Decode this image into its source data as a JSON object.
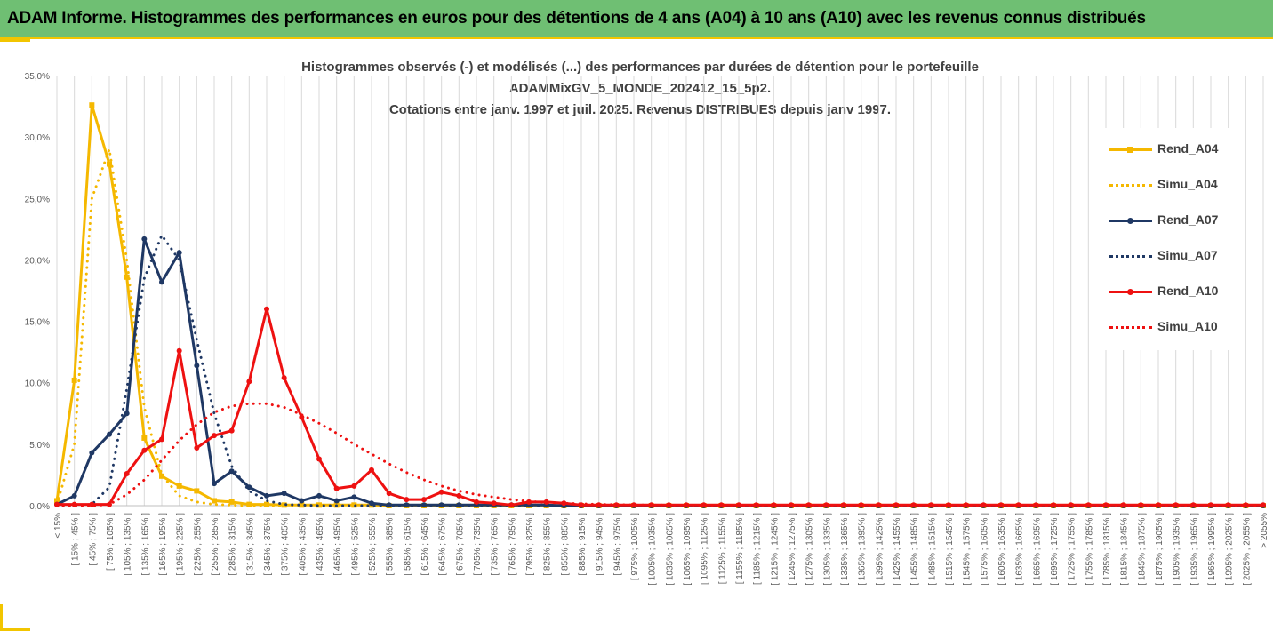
{
  "banner": {
    "title": "ADAM Informe. Histogrammes des performances en euros pour des détentions de 4 ans (A04) à 10 ans (A10) avec les revenus connus distribués"
  },
  "colors": {
    "banner_bg": "#6fbf73",
    "accent": "#f2c500",
    "a04": "#f5b800",
    "a07": "#1f3864",
    "a10": "#ee1111"
  },
  "chart_data": {
    "type": "line",
    "title": [
      "Histogrammes observés (-) et modélisés (...) des performances par durées de détention pour le portefeuille",
      "ADAMMixGV_5_MONDE_202412_15_5p2.",
      "Cotations entre janv. 1997 et juil. 2025. Revenus DISTRIBUES depuis janv 1997."
    ],
    "xlabel": "",
    "ylabel": "",
    "ylim": [
      0,
      35
    ],
    "y_ticks": [
      "0,0%",
      "5,0%",
      "10,0%",
      "15,0%",
      "20,0%",
      "25,0%",
      "30,0%",
      "35,0%"
    ],
    "grid": "vertical",
    "legend_position": "right",
    "categories": [
      "< 15%",
      "[ 15% ; 45% ]",
      "[ 45% ; 75% ]",
      "[ 75% ; 105% ]",
      "[ 105% ; 135% ]",
      "[ 135% ; 165% ]",
      "[ 165% ; 195% ]",
      "[ 195% ; 225% ]",
      "[ 225% ; 255% ]",
      "[ 255% ; 285% ]",
      "[ 285% ; 315% ]",
      "[ 315% ; 345% ]",
      "[ 345% ; 375% ]",
      "[ 375% ; 405% ]",
      "[ 405% ; 435% ]",
      "[ 435% ; 465% ]",
      "[ 465% ; 495% ]",
      "[ 495% ; 525% ]",
      "[ 525% ; 555% ]",
      "[ 555% ; 585% ]",
      "[ 585% ; 615% ]",
      "[ 615% ; 645% ]",
      "[ 645% ; 675% ]",
      "[ 675% ; 705% ]",
      "[ 705% ; 735% ]",
      "[ 735% ; 765% ]",
      "[ 765% ; 795% ]",
      "[ 795% ; 825% ]",
      "[ 825% ; 855% ]",
      "[ 855% ; 885% ]",
      "[ 885% ; 915% ]",
      "[ 915% ; 945% ]",
      "[ 945% ; 975% ]",
      "[ 975% ; 1005% ]",
      "[ 1005% ; 1035% ]",
      "[ 1035% ; 1065% ]",
      "[ 1065% ; 1095% ]",
      "[ 1095% ; 1125% ]",
      "[ 1125% ; 1155% ]",
      "[ 1155% ; 1185% ]",
      "[ 1185% ; 1215% ]",
      "[ 1215% ; 1245% ]",
      "[ 1245% ; 1275% ]",
      "[ 1275% ; 1305% ]",
      "[ 1305% ; 1335% ]",
      "[ 1335% ; 1365% ]",
      "[ 1365% ; 1395% ]",
      "[ 1395% ; 1425% ]",
      "[ 1425% ; 1455% ]",
      "[ 1455% ; 1485% ]",
      "[ 1485% ; 1515% ]",
      "[ 1515% ; 1545% ]",
      "[ 1545% ; 1575% ]",
      "[ 1575% ; 1605% ]",
      "[ 1605% ; 1635% ]",
      "[ 1635% ; 1665% ]",
      "[ 1665% ; 1695% ]",
      "[ 1695% ; 1725% ]",
      "[ 1725% ; 1755% ]",
      "[ 1755% ; 1785% ]",
      "[ 1785% ; 1815% ]",
      "[ 1815% ; 1845% ]",
      "[ 1845% ; 1875% ]",
      "[ 1875% ; 1905% ]",
      "[ 1905% ; 1935% ]",
      "[ 1935% ; 1965% ]",
      "[ 1965% ; 1995% ]",
      "[ 1995% ; 2025% ]",
      "[ 2025% ; 2055% ]",
      "> 2055%"
    ],
    "series": [
      {
        "name": "Rend_A04",
        "style": "solid",
        "color": "#f5b800",
        "values": [
          0.4,
          10.2,
          32.6,
          27.8,
          18.6,
          5.5,
          2.4,
          1.6,
          1.2,
          0.4,
          0.3,
          0.1,
          0.1,
          0.05,
          0.05,
          0.05,
          0.05,
          0.05,
          0.05,
          0,
          0,
          0,
          0,
          0,
          0,
          0,
          0,
          0,
          0,
          0,
          0,
          0,
          0,
          0,
          0,
          0,
          0,
          0,
          0,
          0,
          0,
          0,
          0,
          0,
          0,
          0,
          0,
          0,
          0,
          0,
          0,
          0,
          0,
          0,
          0,
          0,
          0,
          0,
          0,
          0,
          0,
          0,
          0,
          0,
          0,
          0,
          0,
          0,
          0,
          0
        ]
      },
      {
        "name": "Simu_A04",
        "style": "dotted",
        "color": "#f5b800",
        "values": [
          0.1,
          5.0,
          25.0,
          29.0,
          20.0,
          8.0,
          2.5,
          0.8,
          0.3,
          0.1,
          0.05,
          0,
          0,
          0,
          0,
          0,
          0,
          0,
          0,
          0,
          0,
          0,
          0,
          0,
          0,
          0,
          0,
          0,
          0,
          0,
          0,
          0,
          0,
          0,
          0,
          0,
          0,
          0,
          0,
          0,
          0,
          0,
          0,
          0,
          0,
          0,
          0,
          0,
          0,
          0,
          0,
          0,
          0,
          0,
          0,
          0,
          0,
          0,
          0,
          0,
          0,
          0,
          0,
          0,
          0,
          0,
          0,
          0,
          0,
          0
        ]
      },
      {
        "name": "Rend_A07",
        "style": "solid",
        "color": "#1f3864",
        "values": [
          0.1,
          0.8,
          4.3,
          5.8,
          7.5,
          21.7,
          18.2,
          20.6,
          11.4,
          1.8,
          2.8,
          1.5,
          0.8,
          1.0,
          0.4,
          0.8,
          0.4,
          0.7,
          0.2,
          0.05,
          0.05,
          0.05,
          0.05,
          0.05,
          0.05,
          0.05,
          0.05,
          0.05,
          0.05,
          0,
          0,
          0,
          0,
          0,
          0,
          0,
          0,
          0,
          0,
          0,
          0,
          0,
          0,
          0,
          0,
          0,
          0,
          0,
          0,
          0,
          0,
          0,
          0,
          0,
          0,
          0,
          0,
          0,
          0,
          0,
          0,
          0,
          0,
          0,
          0,
          0,
          0,
          0,
          0,
          0
        ]
      },
      {
        "name": "Simu_A07",
        "style": "dotted",
        "color": "#1f3864",
        "values": [
          0,
          0,
          0.1,
          1.5,
          9.5,
          18.5,
          22.0,
          20.0,
          13.5,
          7.5,
          3.2,
          1.2,
          0.4,
          0.1,
          0.05,
          0,
          0,
          0,
          0,
          0,
          0,
          0,
          0,
          0,
          0,
          0,
          0,
          0,
          0,
          0,
          0,
          0,
          0,
          0,
          0,
          0,
          0,
          0,
          0,
          0,
          0,
          0,
          0,
          0,
          0,
          0,
          0,
          0,
          0,
          0,
          0,
          0,
          0,
          0,
          0,
          0,
          0,
          0,
          0,
          0,
          0,
          0,
          0,
          0,
          0,
          0,
          0,
          0,
          0,
          0
        ]
      },
      {
        "name": "Rend_A10",
        "style": "solid",
        "color": "#ee1111",
        "values": [
          0.1,
          0.1,
          0.1,
          0.1,
          2.6,
          4.5,
          5.4,
          12.6,
          4.7,
          5.7,
          6.1,
          10.1,
          16.0,
          10.4,
          7.2,
          3.8,
          1.4,
          1.6,
          2.9,
          1.0,
          0.5,
          0.5,
          1.1,
          0.8,
          0.3,
          0.2,
          0.05,
          0.3,
          0.3,
          0.2,
          0.05,
          0.05,
          0.05,
          0.05,
          0.05,
          0.05,
          0.05,
          0.05,
          0.05,
          0.05,
          0.05,
          0.05,
          0.05,
          0.05,
          0.05,
          0.05,
          0.05,
          0.05,
          0.05,
          0.05,
          0.05,
          0.05,
          0.05,
          0.05,
          0.05,
          0.05,
          0.05,
          0.05,
          0.05,
          0.05,
          0.05,
          0.05,
          0.05,
          0.05,
          0.05,
          0.05,
          0.05,
          0.05,
          0.05,
          0.05
        ]
      },
      {
        "name": "Simu_A10",
        "style": "dotted",
        "color": "#ee1111",
        "values": [
          0,
          0,
          0,
          0.1,
          0.9,
          2.1,
          3.7,
          5.3,
          6.6,
          7.6,
          8.1,
          8.3,
          8.3,
          8.0,
          7.4,
          6.7,
          5.9,
          5.0,
          4.2,
          3.4,
          2.7,
          2.1,
          1.6,
          1.2,
          0.9,
          0.7,
          0.5,
          0.35,
          0.25,
          0.2,
          0.15,
          0.1,
          0.08,
          0.06,
          0.05,
          0.04,
          0.03,
          0.02,
          0.02,
          0.01,
          0.01,
          0.01,
          0,
          0,
          0,
          0,
          0,
          0,
          0,
          0,
          0,
          0,
          0,
          0,
          0,
          0,
          0,
          0,
          0,
          0,
          0,
          0,
          0,
          0,
          0,
          0,
          0,
          0,
          0,
          0
        ]
      }
    ]
  }
}
